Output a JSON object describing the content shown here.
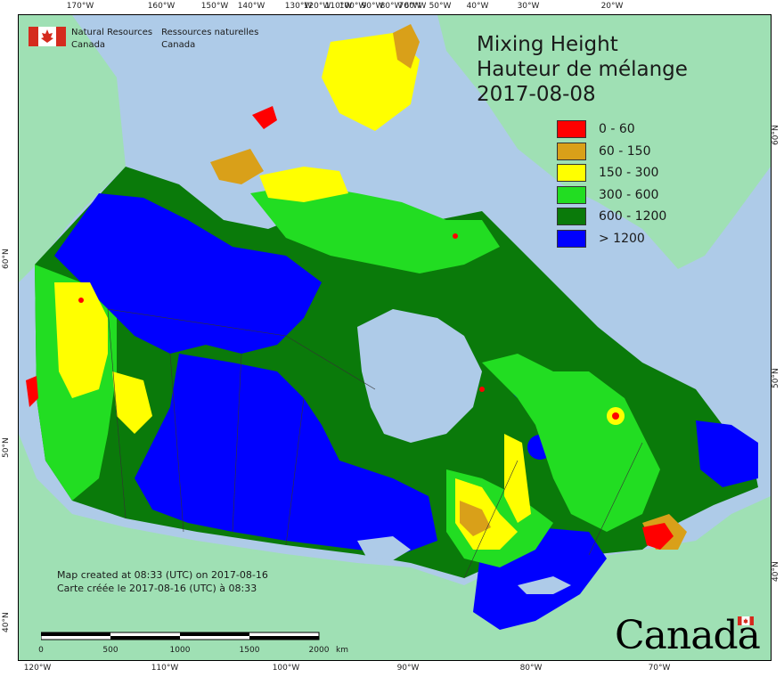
{
  "title": {
    "line1": "Mixing Height",
    "line2": "Hauteur de mélange",
    "date": "2017-08-08"
  },
  "legend": [
    {
      "label": "0 - 60",
      "color": "#ff0000"
    },
    {
      "label": "60 - 150",
      "color": "#d9a019"
    },
    {
      "label": "150 - 300",
      "color": "#ffff00"
    },
    {
      "label": "300 - 600",
      "color": "#22dd22"
    },
    {
      "label": "600 - 1200",
      "color": "#0a7a0a"
    },
    {
      "label": "> 1200",
      "color": "#0000ff"
    }
  ],
  "department": {
    "en_line1": "Natural Resources",
    "en_line2": "Canada",
    "fr_line1": "Ressources naturelles",
    "fr_line2": "Canada"
  },
  "created": {
    "en": "Map created at 08:33 (UTC) on 2017-08-16",
    "fr": "Carte créée le 2017-08-16 (UTC) à 08:33"
  },
  "scale": {
    "labels": [
      "0",
      "500",
      "1000",
      "1500",
      "2000"
    ],
    "unit": "km"
  },
  "wordmark": "Canada",
  "ticks": {
    "top": [
      "170°W",
      "160°W",
      "150°W",
      "140°W",
      "130°W",
      "120°W",
      "110°W",
      "100°W",
      "90°W",
      "80°W",
      "70°W",
      "60°W",
      "50°W",
      "40°W",
      "30°W",
      "20°W"
    ],
    "bottom": [
      "120°W",
      "110°W",
      "100°W",
      "90°W",
      "80°W",
      "70°W"
    ],
    "left": [
      "60°N",
      "50°N",
      "40°N"
    ],
    "right": [
      "60°N",
      "50°N",
      "40°N"
    ]
  },
  "colors": {
    "ocean": "#aecbe8",
    "land_outside": "#9fe0b4",
    "border": "#333333"
  }
}
